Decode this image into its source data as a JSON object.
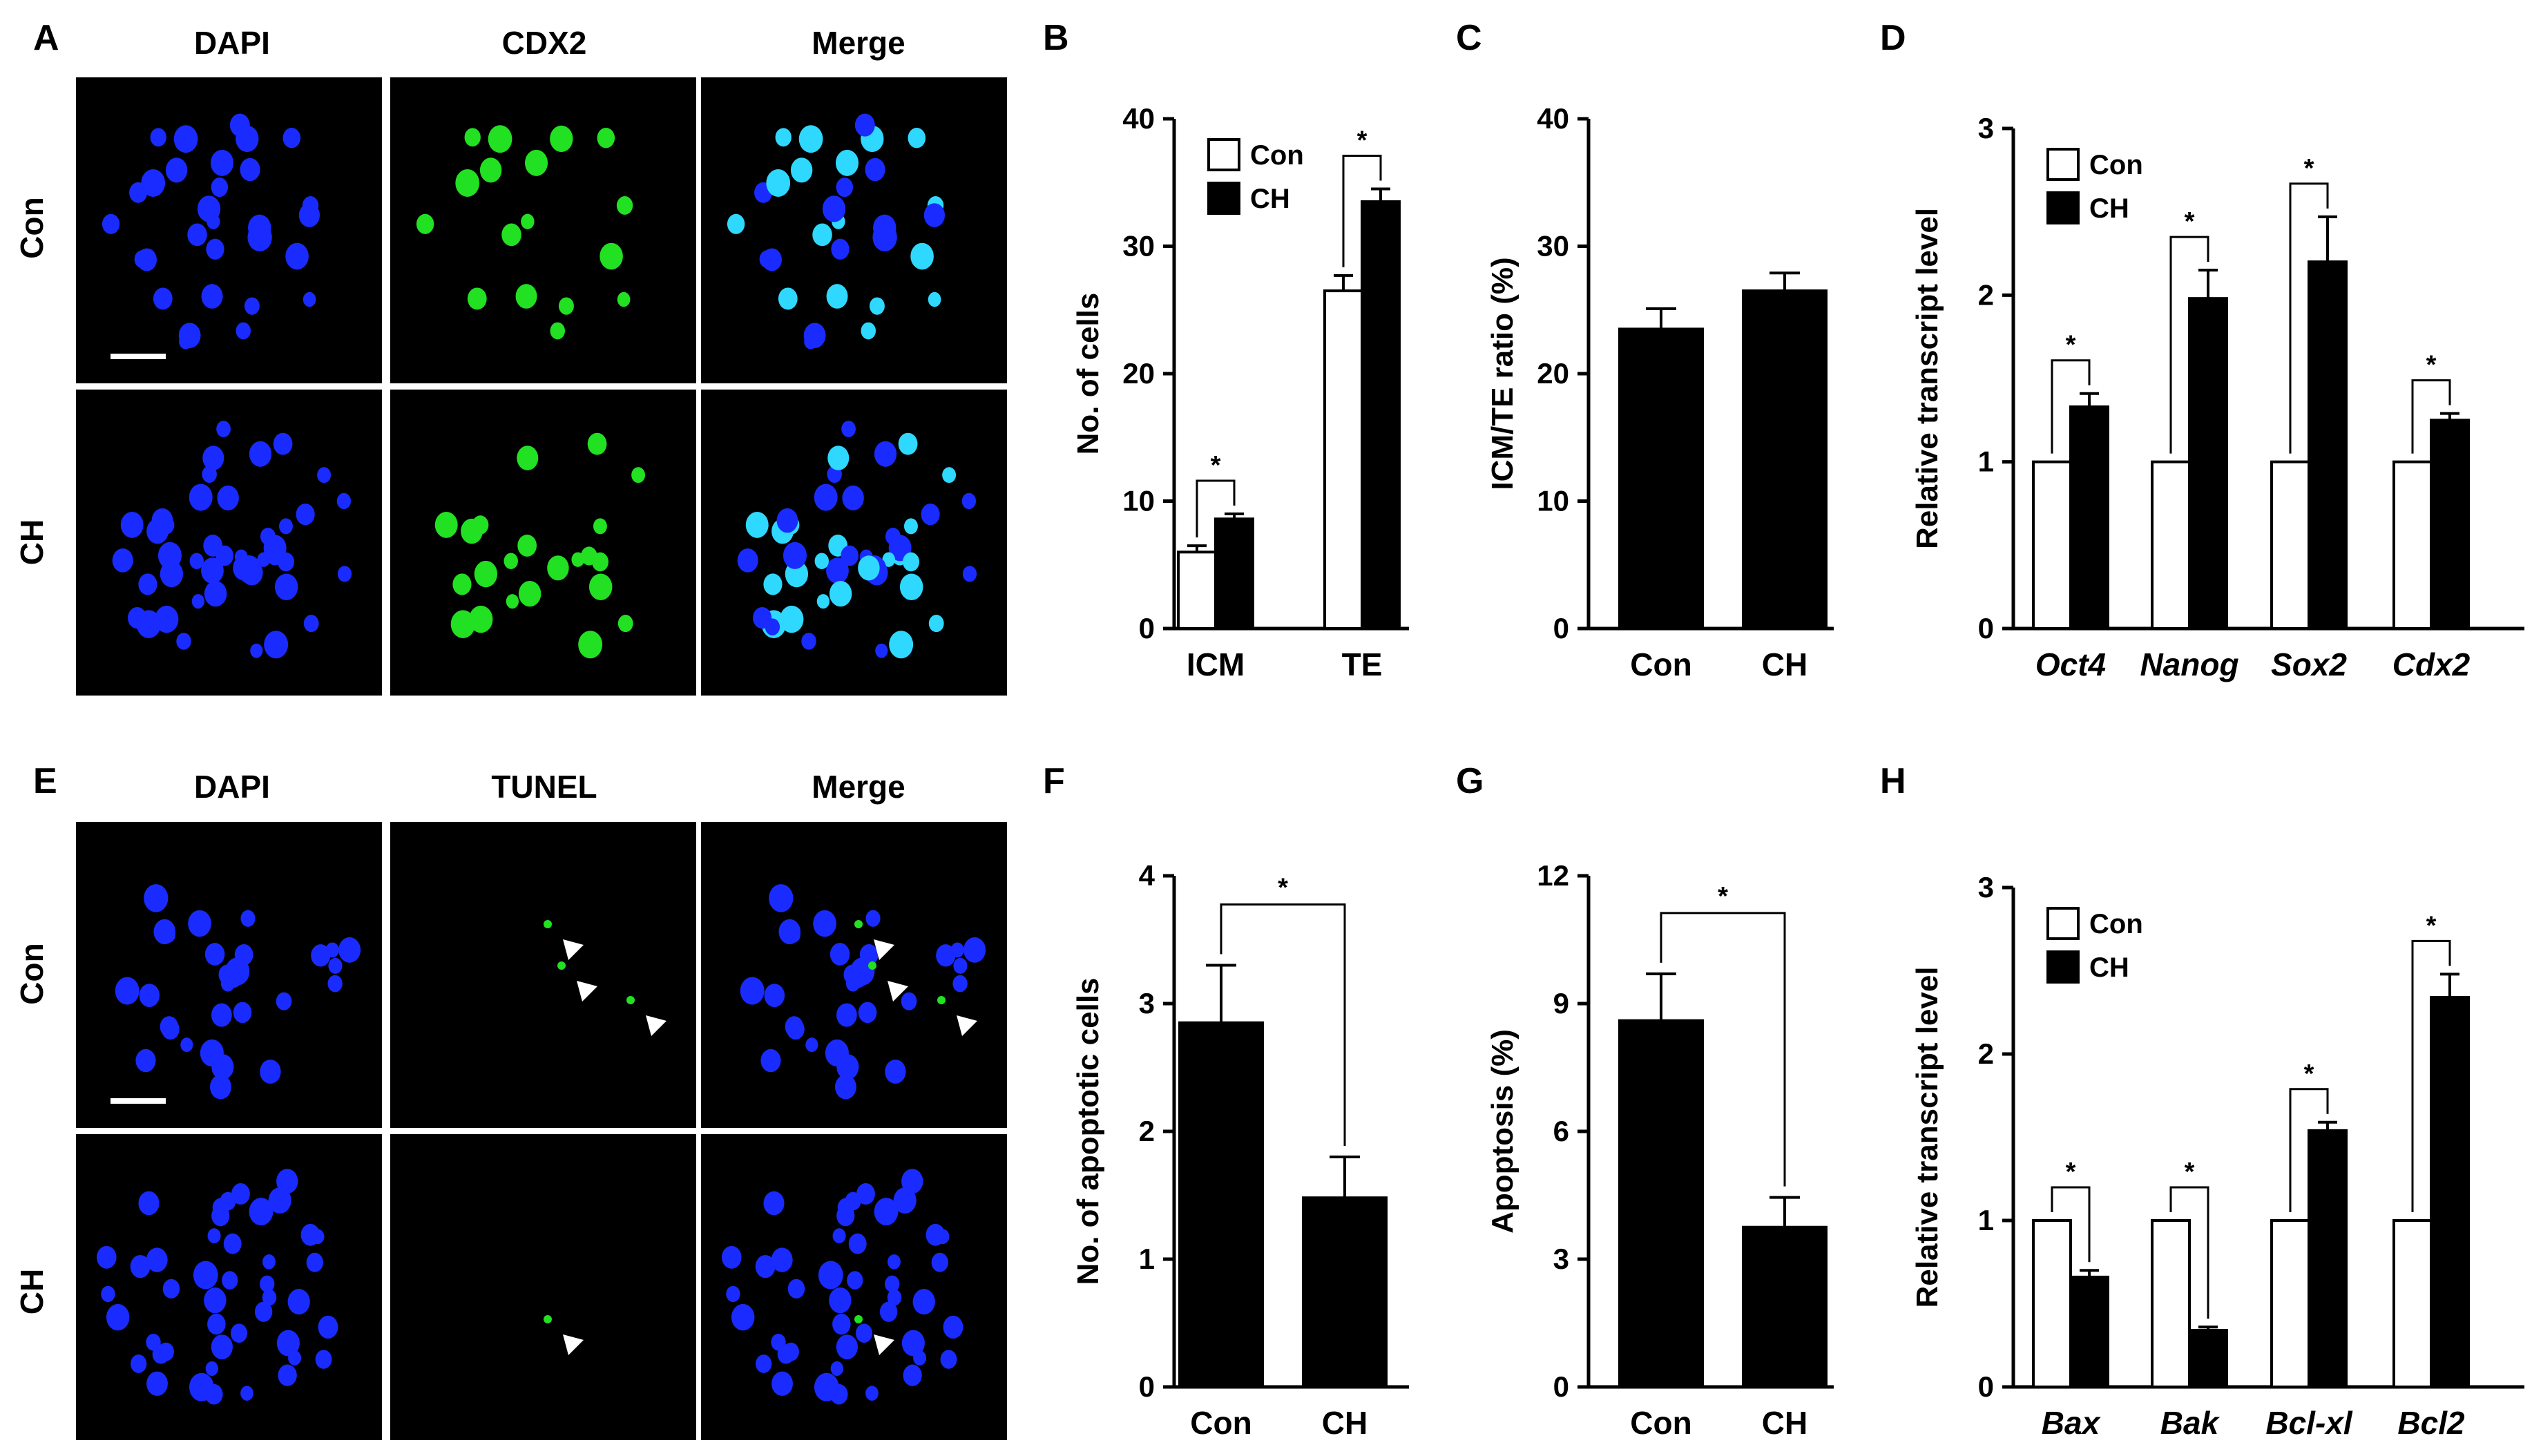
{
  "figure": {
    "panel_letters": [
      "A",
      "B",
      "C",
      "D",
      "E",
      "F",
      "G",
      "H"
    ],
    "micrographs": [
      {
        "panel": "A",
        "channels": [
          "DAPI",
          "CDX2",
          "Merge"
        ],
        "rows": [
          "Con",
          "CH"
        ],
        "channel_colors": {
          "DAPI": "#1a2bff",
          "CDX2": "#22e022",
          "Merge": "#2fd8ff"
        }
      },
      {
        "panel": "E",
        "channels": [
          "DAPI",
          "TUNEL",
          "Merge"
        ],
        "rows": [
          "Con",
          "CH"
        ],
        "channel_colors": {
          "DAPI": "#1a2bff",
          "TUNEL": "#22e022",
          "Merge": "#2fd8ff"
        }
      }
    ]
  },
  "chart_data": [
    {
      "panel": "B",
      "type": "bar",
      "categories": [
        "ICM",
        "TE"
      ],
      "series": [
        {
          "name": "Con",
          "values": [
            6.0,
            26.5
          ],
          "errors": [
            0.5,
            1.2
          ],
          "fill": "#ffffff"
        },
        {
          "name": "CH",
          "values": [
            8.6,
            33.5
          ],
          "errors": [
            0.4,
            1.0
          ],
          "fill": "#000000"
        }
      ],
      "ylabel": "No. of cells",
      "ylim": [
        0,
        40
      ],
      "yticks": [
        "0",
        "10",
        "20",
        "30",
        "40"
      ],
      "legend": "top-left",
      "significance": [
        "*",
        "*"
      ],
      "italic_categories": false
    },
    {
      "panel": "C",
      "type": "bar",
      "categories": [
        "Con",
        "CH"
      ],
      "values": [
        23.5,
        26.5
      ],
      "errors": [
        1.6,
        1.4
      ],
      "ylabel": "ICM/TE ratio (%)",
      "ylim": [
        0,
        40
      ],
      "yticks": [
        "0",
        "10",
        "20",
        "30",
        "40"
      ]
    },
    {
      "panel": "D",
      "type": "bar",
      "categories": [
        "Oct4",
        "Nanog",
        "Sox2",
        "Cdx2"
      ],
      "series": [
        {
          "name": "Con",
          "values": [
            1.0,
            1.0,
            1.0,
            1.0
          ],
          "errors": [
            0,
            0,
            0,
            0
          ],
          "fill": "#ffffff"
        },
        {
          "name": "CH",
          "values": [
            1.33,
            1.98,
            2.2,
            1.25
          ],
          "errors": [
            0.08,
            0.17,
            0.27,
            0.04
          ],
          "fill": "#000000"
        }
      ],
      "ylabel": "Relative transcript level",
      "ylim": [
        0,
        3
      ],
      "yticks": [
        "0",
        "1",
        "2",
        "3"
      ],
      "legend": "top-left",
      "significance": [
        "*",
        "*",
        "*",
        "*"
      ],
      "italic_categories": true
    },
    {
      "panel": "F",
      "type": "bar",
      "categories": [
        "Con",
        "CH"
      ],
      "values": [
        2.85,
        1.48
      ],
      "errors": [
        0.45,
        0.32
      ],
      "ylabel": "No. of apoptotic cells",
      "ylim": [
        0,
        4
      ],
      "yticks": [
        "0",
        "1",
        "2",
        "3",
        "4"
      ],
      "significance": "*"
    },
    {
      "panel": "G",
      "type": "bar",
      "categories": [
        "Con",
        "CH"
      ],
      "values": [
        8.6,
        3.75
      ],
      "errors": [
        1.1,
        0.7
      ],
      "ylabel": "Apoptosis (%)",
      "ylim": [
        0,
        12
      ],
      "yticks": [
        "0",
        "3",
        "6",
        "9",
        "12"
      ],
      "significance": "*"
    },
    {
      "panel": "H",
      "type": "bar",
      "categories": [
        "Bax",
        "Bak",
        "Bcl-xl",
        "Bcl2"
      ],
      "series": [
        {
          "name": "Con",
          "values": [
            1.0,
            1.0,
            1.0,
            1.0
          ],
          "errors": [
            0,
            0,
            0,
            0
          ],
          "fill": "#ffffff"
        },
        {
          "name": "CH",
          "values": [
            0.66,
            0.34,
            1.54,
            2.34
          ],
          "errors": [
            0.04,
            0.02,
            0.05,
            0.14
          ],
          "fill": "#000000"
        }
      ],
      "ylabel": "Relative transcript level",
      "ylim": [
        0,
        3
      ],
      "yticks": [
        "0",
        "1",
        "2",
        "3"
      ],
      "legend": "top-left",
      "significance": [
        "*",
        "*",
        "*",
        "*"
      ],
      "italic_categories": true
    }
  ]
}
